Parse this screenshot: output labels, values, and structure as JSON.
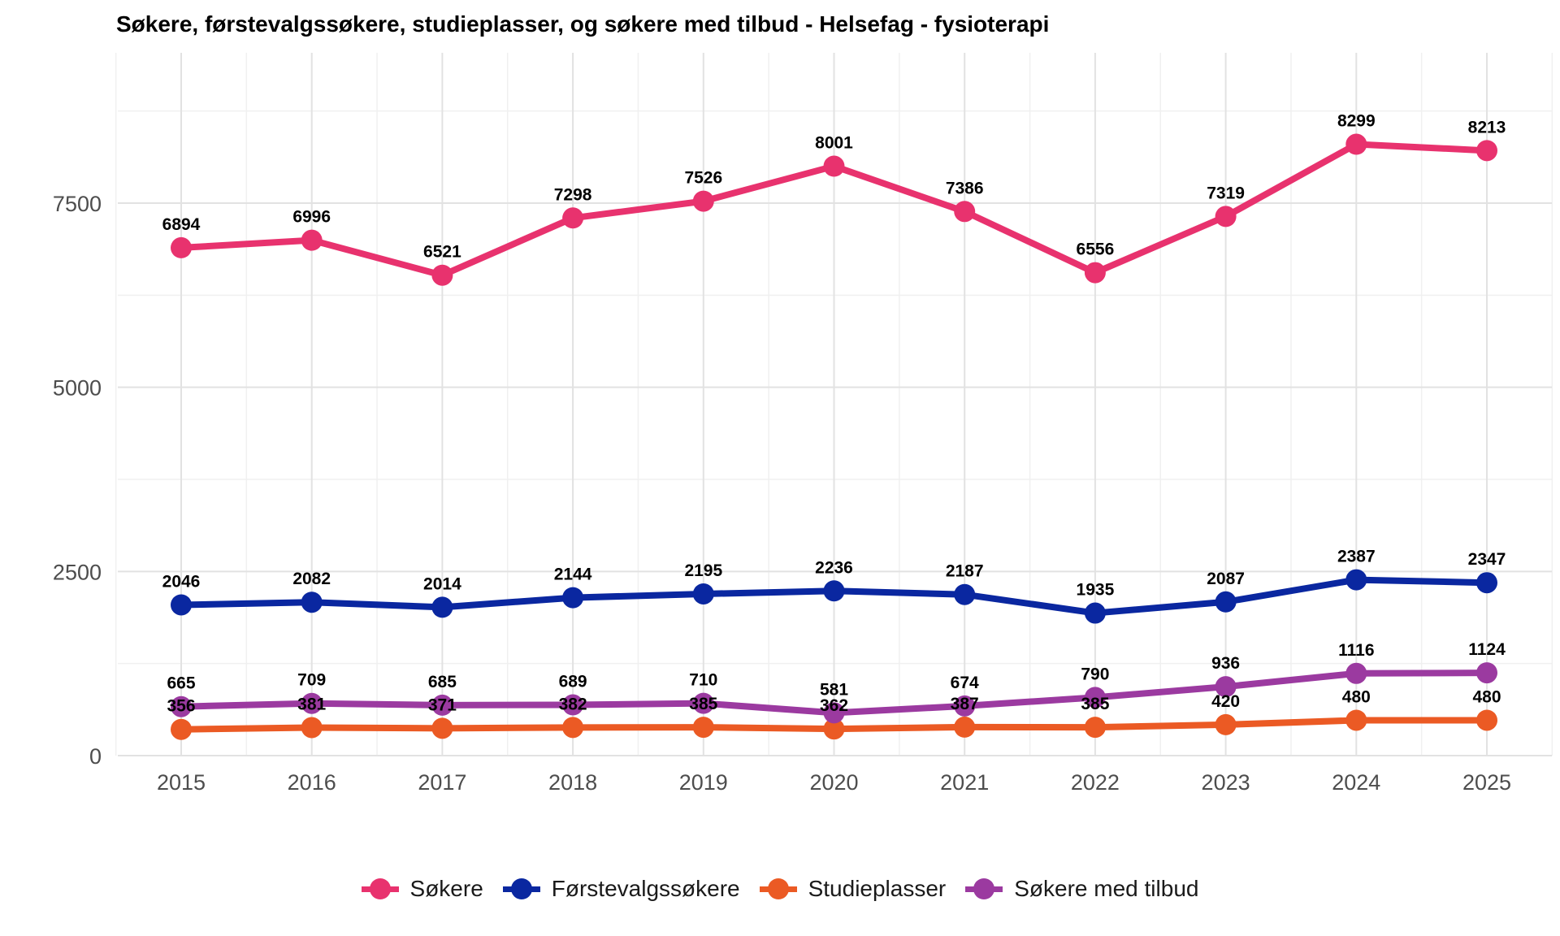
{
  "chart_data": {
    "type": "line",
    "title": "Søkere, førstevalgssøkere, studieplasser, og søkere med tilbud - Helsefag - fysioterapi",
    "xlabel": "",
    "ylabel": "",
    "x": [
      "2015",
      "2016",
      "2017",
      "2018",
      "2019",
      "2020",
      "2021",
      "2022",
      "2023",
      "2024",
      "2025"
    ],
    "ylim": [
      0,
      9500
    ],
    "yticks": [
      0,
      2500,
      5000,
      7500
    ],
    "grid": true,
    "legend_position": "bottom",
    "series": [
      {
        "name": "Søkere",
        "color": "#E8326E",
        "values": [
          6894,
          6996,
          6521,
          7298,
          7526,
          8001,
          7386,
          6556,
          7319,
          8299,
          8213
        ]
      },
      {
        "name": "Førstevalgssøkere",
        "color": "#0A27A0",
        "values": [
          2046,
          2082,
          2014,
          2144,
          2195,
          2236,
          2187,
          1935,
          2087,
          2387,
          2347
        ]
      },
      {
        "name": "Studieplasser",
        "color": "#EB5A24",
        "values": [
          356,
          381,
          371,
          382,
          385,
          362,
          387,
          385,
          420,
          480,
          480
        ]
      },
      {
        "name": "Søkere med tilbud",
        "color": "#9B3AA0",
        "values": [
          665,
          709,
          685,
          689,
          710,
          581,
          674,
          790,
          936,
          1116,
          1124
        ]
      }
    ]
  }
}
